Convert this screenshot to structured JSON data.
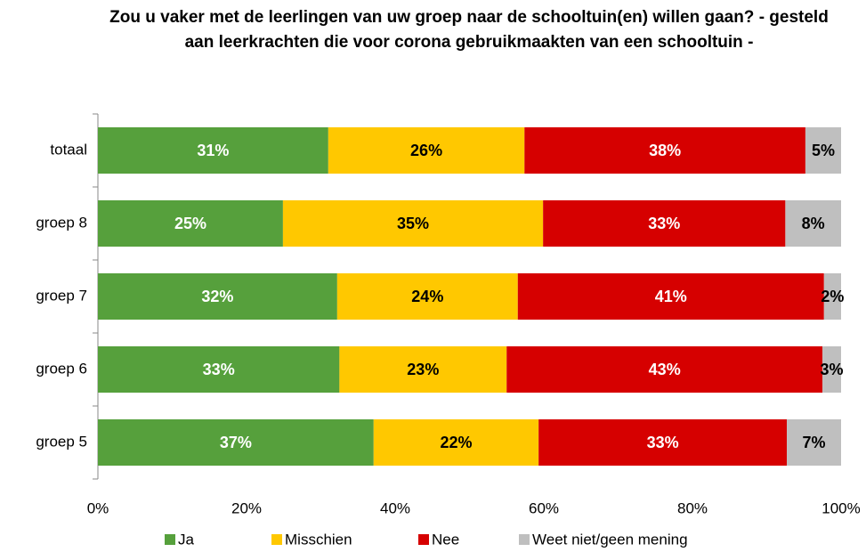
{
  "chart_data": {
    "type": "stacked_barh",
    "title": "Zou u vaker met de leerlingen van uw groep naar de schooltuin(en) willen gaan? - gesteld aan leerkrachten die voor corona gebruikmaakten van een schooltuin -",
    "categories": [
      "totaal",
      "groep 8",
      "groep 7",
      "groep 6",
      "groep 5"
    ],
    "series": [
      {
        "name": "Ja",
        "color": "#56a03c",
        "label_color": "#ffffff",
        "values": [
          31.0,
          24.9,
          32.2,
          32.5,
          37.1
        ],
        "value_labels": [
          "31%",
          "25%",
          "32%",
          "33%",
          "37%"
        ]
      },
      {
        "name": "Misschien",
        "color": "#ffc800",
        "label_color": "#000000",
        "values": [
          26.4,
          35.0,
          24.3,
          22.5,
          22.2
        ],
        "value_labels": [
          "26%",
          "35%",
          "24%",
          "23%",
          "22%"
        ]
      },
      {
        "name": "Nee",
        "color": "#d60000",
        "label_color": "#ffffff",
        "values": [
          37.8,
          32.6,
          41.2,
          42.5,
          33.4
        ],
        "value_labels": [
          "38%",
          "33%",
          "41%",
          "43%",
          "33%"
        ]
      },
      {
        "name": "Weet niet/geen mening",
        "color": "#bfbfbf",
        "label_color": "#000000",
        "values": [
          4.8,
          7.5,
          2.3,
          2.5,
          7.3
        ],
        "value_labels": [
          "5%",
          "8%",
          "2%",
          "3%",
          "7%"
        ]
      }
    ],
    "xlim": [
      0,
      100
    ],
    "xticks": [
      {
        "value": 0,
        "label": "0%"
      },
      {
        "value": 20,
        "label": "20%"
      },
      {
        "value": 40,
        "label": "40%"
      },
      {
        "value": 60,
        "label": "60%"
      },
      {
        "value": 80,
        "label": "80%"
      },
      {
        "value": 100,
        "label": "100%"
      }
    ],
    "legend": "bottom"
  }
}
